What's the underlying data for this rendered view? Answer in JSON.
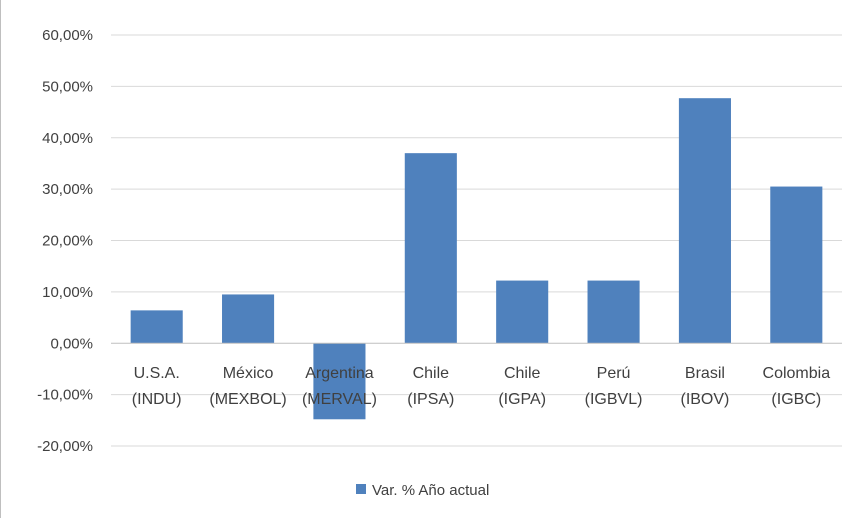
{
  "chart_data": {
    "type": "bar",
    "title": "",
    "xlabel": "",
    "ylabel": "",
    "categories": [
      [
        "U.S.A.",
        "(INDU)"
      ],
      [
        "México",
        "(MEXBOL)"
      ],
      [
        "Argentina",
        "(MERVAL)"
      ],
      [
        "Chile",
        "(IPSA)"
      ],
      [
        "Chile",
        "(IGPA)"
      ],
      [
        "Perú",
        "(IGBVL)"
      ],
      [
        "Brasil",
        "(IBOV)"
      ],
      [
        "Colombia",
        "(IGBC)"
      ]
    ],
    "series": [
      {
        "name": "Var. % Año actual",
        "values": [
          6.4,
          9.5,
          -14.8,
          37.0,
          12.2,
          12.2,
          47.7,
          30.5
        ],
        "color": "#4f81bd"
      }
    ],
    "ylim": [
      -20,
      60
    ],
    "yticks": [
      60,
      50,
      40,
      30,
      20,
      10,
      0,
      -10,
      -20
    ],
    "ytick_labels": [
      "60,00%",
      "50,00%",
      "40,00%",
      "30,00%",
      "20,00%",
      "10,00%",
      "0,00%",
      "-10,00%",
      "-20,00%"
    ],
    "grid": true,
    "legend_position": "bottom"
  }
}
